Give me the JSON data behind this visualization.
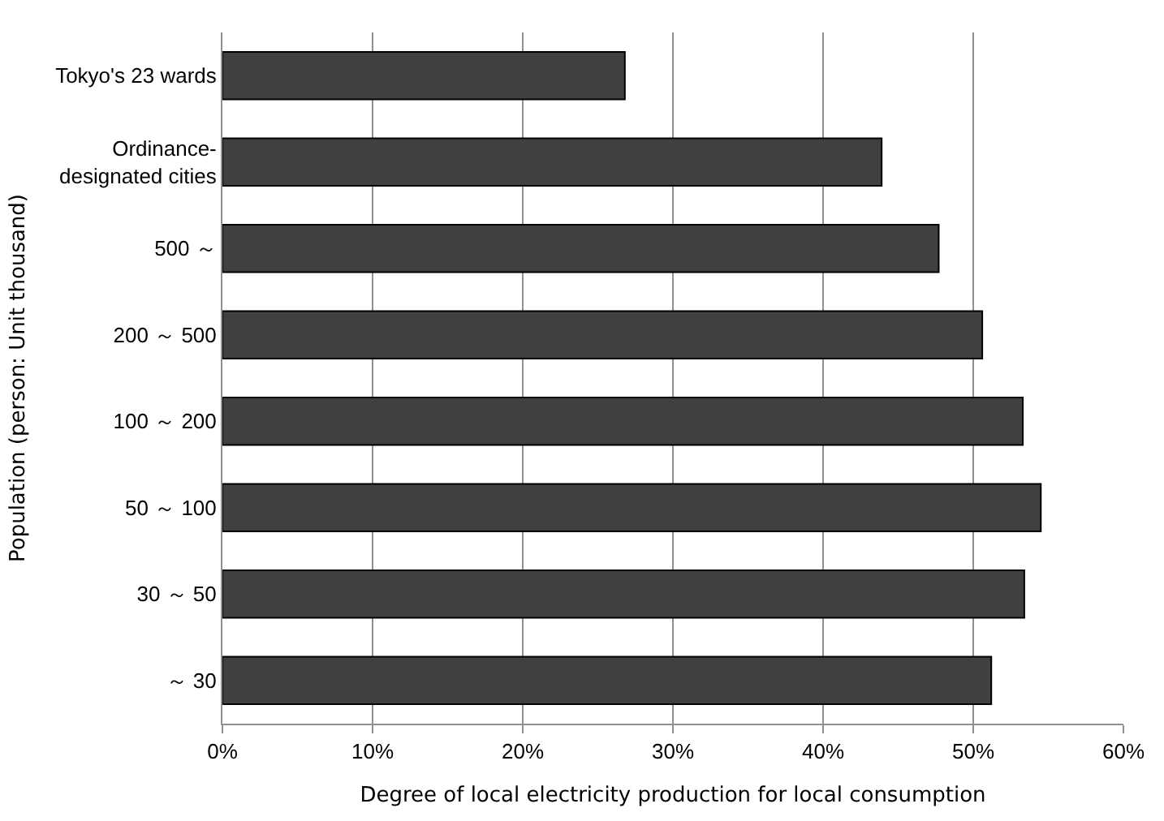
{
  "chart_data": {
    "type": "bar",
    "orientation": "horizontal",
    "xlabel": "Degree of local electricity production for local consumption",
    "ylabel": "Population (person: Unit thousand)",
    "categories": [
      "Tokyo's 23 wards",
      "Ordinance-\ndesignated cities",
      "500 ～",
      "200 ～ 500",
      "100 ～ 200",
      "50 ～ 100",
      "30 ～ 50",
      "～ 30"
    ],
    "values": [
      26.8,
      43.9,
      47.7,
      50.6,
      53.3,
      54.5,
      53.4,
      51.2
    ],
    "color": "#404040",
    "xlim": [
      0,
      60
    ],
    "xticks": [
      {
        "value": 0,
        "label": "0%"
      },
      {
        "value": 10,
        "label": "10%"
      },
      {
        "value": 20,
        "label": "20%"
      },
      {
        "value": 30,
        "label": "30%"
      },
      {
        "value": 40,
        "label": "40%"
      },
      {
        "value": 50,
        "label": "50%"
      },
      {
        "value": 60,
        "label": "60%"
      }
    ],
    "grid": "x"
  }
}
